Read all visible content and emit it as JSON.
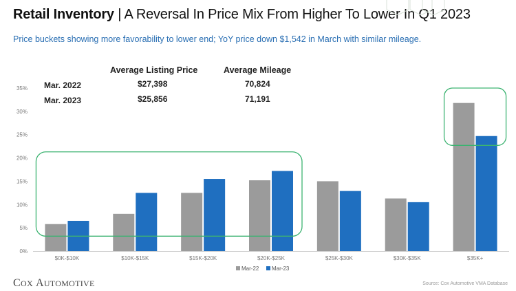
{
  "header": {
    "title_strong": "Retail Inventory",
    "title_rest": " | A Reversal In Price Mix From Higher To Lower In Q1 2023",
    "subtitle": "Price buckets showing more favorability to lower end; YoY price down $1,542 in March with similar mileage."
  },
  "summary_table": {
    "headers": [
      "Average Listing Price",
      "Average Mileage"
    ],
    "rows": [
      {
        "label": "Mar. 2022",
        "price": "$27,398",
        "mileage": "70,824"
      },
      {
        "label": "Mar. 2023",
        "price": "$25,856",
        "mileage": "71,191"
      }
    ]
  },
  "chart_data": {
    "type": "bar",
    "categories": [
      "$0K-$10K",
      "$10K-$15K",
      "$15K-$20K",
      "$20K-$25K",
      "$25K-$30K",
      "$30K-$35K",
      "$35K+"
    ],
    "series": [
      {
        "name": "Mar-22",
        "color": "#9b9b9b",
        "values": [
          5.8,
          8.0,
          12.5,
          15.2,
          15.0,
          11.3,
          31.8
        ]
      },
      {
        "name": "Mar-23",
        "color": "#1f6fc0",
        "values": [
          6.5,
          12.5,
          15.5,
          17.2,
          12.9,
          10.5,
          24.7
        ]
      }
    ],
    "yticks": [
      "0%",
      "5%",
      "10%",
      "15%",
      "20%",
      "25%",
      "30%",
      "35%"
    ],
    "ylim": [
      0,
      35
    ],
    "legend_position": "bottom-center",
    "highlight_color": "#3cb371"
  },
  "footer": {
    "logo_c": "C",
    "logo_ox": "OX",
    "logo_a": "A",
    "logo_utomotive": "UTOMOTIVE",
    "source": "Source: Cox Automotive VMA Database"
  }
}
